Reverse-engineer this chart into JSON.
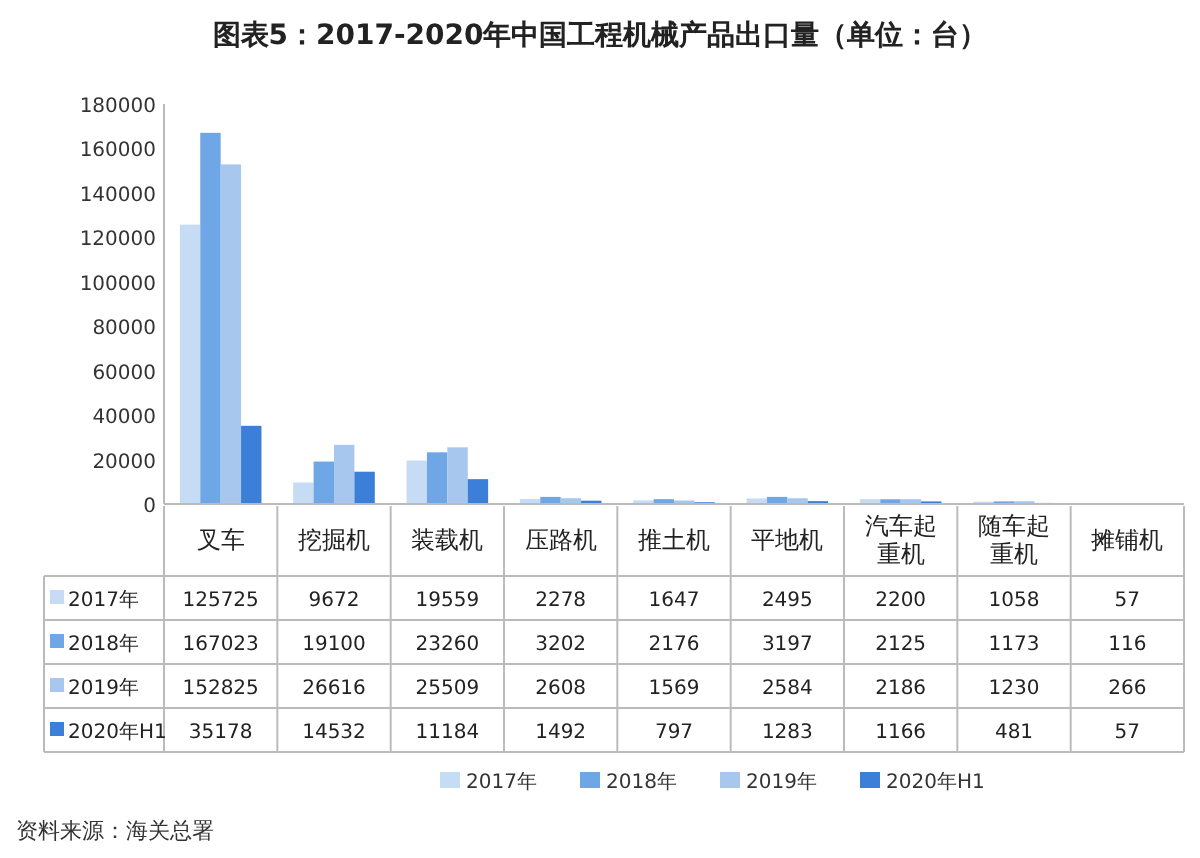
{
  "chart_data": {
    "type": "bar",
    "title": "图表5：2017-2020年中国工程机械产品出口量（单位：台）",
    "categories": [
      "叉车",
      "挖掘机",
      "装载机",
      "压路机",
      "推土机",
      "平地机",
      "汽车起重机",
      "随车起重机",
      "摊铺机"
    ],
    "series": [
      {
        "name": "2017年",
        "color": "#c6dcf4",
        "values": [
          125725,
          9672,
          19559,
          2278,
          1647,
          2495,
          2200,
          1058,
          57
        ]
      },
      {
        "name": "2018年",
        "color": "#6ea6e6",
        "values": [
          167023,
          19100,
          23260,
          3202,
          2176,
          3197,
          2125,
          1173,
          116
        ]
      },
      {
        "name": "2019年",
        "color": "#a7c7ee",
        "values": [
          152825,
          26616,
          25509,
          2608,
          1569,
          2584,
          2186,
          1230,
          266
        ]
      },
      {
        "name": "2020年H1",
        "color": "#3b7fd9",
        "values": [
          35178,
          14532,
          11184,
          1492,
          797,
          1283,
          1166,
          481,
          57
        ]
      }
    ],
    "ylim": [
      0,
      180000
    ],
    "yticks": [
      0,
      20000,
      40000,
      60000,
      80000,
      100000,
      120000,
      140000,
      160000,
      180000
    ],
    "data_labels": true,
    "legend": "bottom",
    "annotations": [
      "资料来源：海关总署"
    ]
  }
}
